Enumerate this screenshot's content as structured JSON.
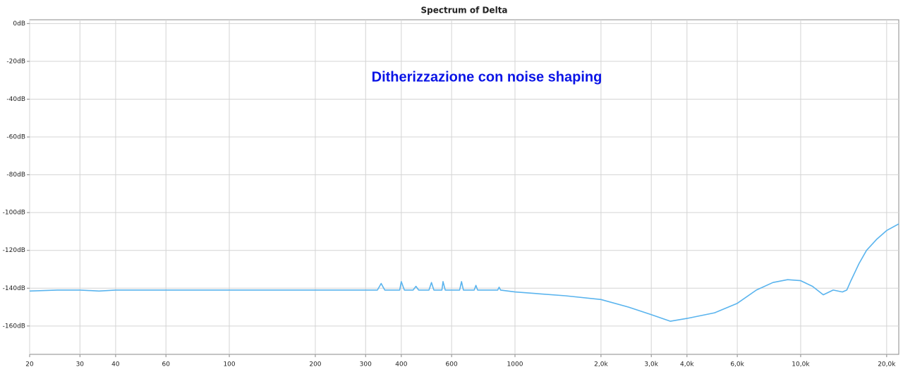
{
  "chart_data": {
    "type": "line",
    "title": "Spectrum of Delta",
    "annotation": "Ditherizzazione con noise shaping",
    "xscale": "log",
    "grid": true,
    "color": "#5ab4ee",
    "xlim": [
      20,
      22050
    ],
    "ylim": [
      -175,
      2
    ],
    "xticks": [
      20,
      30,
      40,
      60,
      100,
      200,
      300,
      400,
      600,
      1000,
      {
        "value": 2000,
        "label": "2,0k"
      },
      {
        "value": 3000,
        "label": "3,0k"
      },
      {
        "value": 4000,
        "label": "4,0k"
      },
      {
        "value": 6000,
        "label": "6,0k"
      },
      {
        "value": 10000,
        "label": "10,0k"
      },
      {
        "value": 20000,
        "label": "20,0k"
      }
    ],
    "yticks": [
      {
        "value": 0,
        "label": "0dB"
      },
      {
        "value": -20,
        "label": "-20dB"
      },
      {
        "value": -40,
        "label": "-40dB"
      },
      {
        "value": -60,
        "label": "-60dB"
      },
      {
        "value": -80,
        "label": "-80dB"
      },
      {
        "value": -100,
        "label": "-100dB"
      },
      {
        "value": -120,
        "label": "-120dB"
      },
      {
        "value": -140,
        "label": "-140dB"
      },
      {
        "value": -160,
        "label": "-160dB"
      }
    ],
    "x": [
      20,
      25,
      30,
      35,
      40,
      50,
      60,
      80,
      100,
      150,
      200,
      250,
      330,
      340,
      350,
      395,
      400,
      410,
      440,
      450,
      460,
      500,
      510,
      520,
      555,
      560,
      570,
      640,
      650,
      660,
      720,
      730,
      740,
      870,
      880,
      890,
      1000,
      1500,
      2000,
      2500,
      3000,
      3500,
      4000,
      5000,
      6000,
      7000,
      8000,
      9000,
      10000,
      11000,
      12000,
      13000,
      14000,
      14500,
      15000,
      16000,
      17000,
      18500,
      20000,
      22050
    ],
    "values": [
      -141.5,
      -141,
      -141,
      -141.5,
      -141,
      -141,
      -141,
      -141,
      -141,
      -141,
      -141,
      -141,
      -141,
      -137.5,
      -141,
      -141,
      -136.5,
      -141,
      -141,
      -139,
      -141,
      -141,
      -137,
      -141,
      -141,
      -136.5,
      -141,
      -141,
      -136.5,
      -141,
      -141,
      -138.5,
      -141,
      -141,
      -139.5,
      -141,
      -142,
      -144,
      -146,
      -150,
      -154,
      -157.5,
      -156,
      -153,
      -148,
      -141,
      -137,
      -135.5,
      -136,
      -139,
      -143.5,
      -141,
      -142,
      -141,
      -136,
      -127,
      -120,
      -114,
      -109.5,
      -106
    ]
  }
}
